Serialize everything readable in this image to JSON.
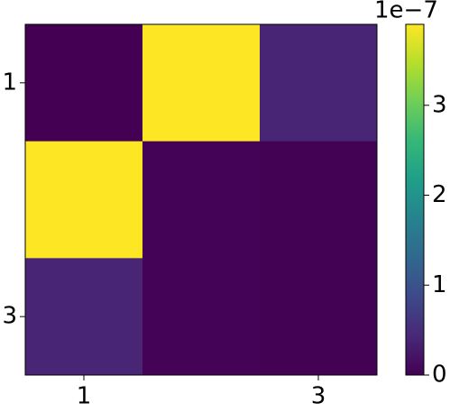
{
  "chart_data": {
    "type": "heatmap",
    "x_categories": [
      "1",
      null,
      "3"
    ],
    "y_categories": [
      "1",
      null,
      "3"
    ],
    "z": [
      [
        0,
        3.9,
        0.4
      ],
      [
        3.9,
        0.02,
        0.01
      ],
      [
        0.4,
        0.02,
        0.01
      ]
    ],
    "colormap": "viridis",
    "clim": [
      0,
      3.9
    ],
    "cticks": [
      0,
      1,
      2,
      3
    ],
    "c_offset_label": "1e−7"
  }
}
